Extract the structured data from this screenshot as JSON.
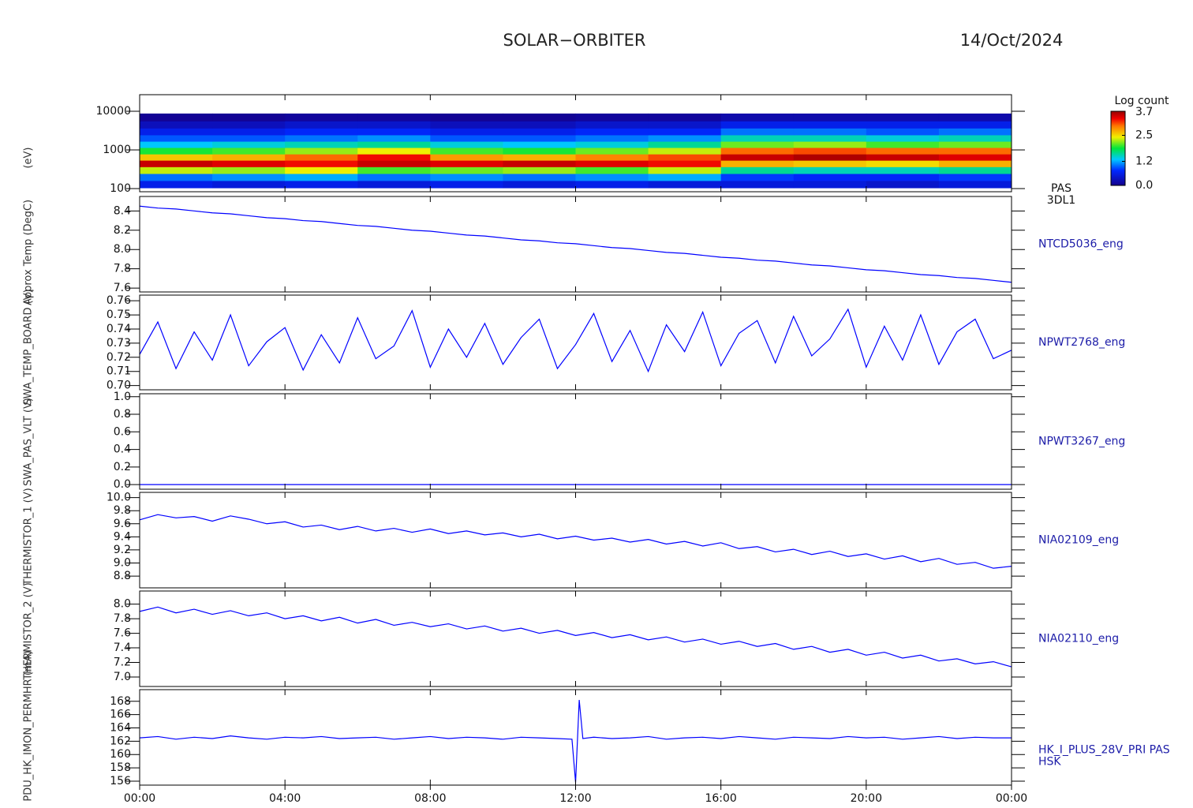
{
  "header": {
    "title": "SOLAR−ORBITER",
    "date": "14/Oct/2024"
  },
  "chart_data": [
    {
      "type": "heatmap",
      "label_lines": [
        "PAS",
        "3DL1"
      ],
      "ytitle": "(eV)",
      "log": true,
      "xlim": [
        0,
        24
      ],
      "xticks": [
        0,
        4,
        8,
        12,
        16,
        20,
        24
      ],
      "ylim": [
        83,
        26800
      ],
      "yticks": [
        100,
        1000,
        10000
      ],
      "x": [
        1,
        3,
        5,
        7,
        9,
        11,
        13,
        15,
        17,
        19,
        21,
        23
      ],
      "y": [
        130,
        200,
        300,
        450,
        650,
        950,
        1400,
        2000,
        3000,
        4500,
        7000
      ],
      "z": [
        [
          0.6,
          0.5,
          0.6,
          0.5,
          0.6,
          0.5,
          0.6,
          0.5,
          0.5,
          0.5,
          0.4,
          0.5
        ],
        [
          1.0,
          1.1,
          1.2,
          1.0,
          1.1,
          1.0,
          1.1,
          1.2,
          0.8,
          0.7,
          0.7,
          0.8
        ],
        [
          2.3,
          2.2,
          2.4,
          2.0,
          2.1,
          2.2,
          2.0,
          2.3,
          1.6,
          1.5,
          1.5,
          1.6
        ],
        [
          3.5,
          3.4,
          3.3,
          3.5,
          3.4,
          3.5,
          3.4,
          3.3,
          2.7,
          2.6,
          2.5,
          2.7
        ],
        [
          2.6,
          2.7,
          3.0,
          3.3,
          2.8,
          2.7,
          2.9,
          3.1,
          3.5,
          3.6,
          3.5,
          3.4
        ],
        [
          1.9,
          2.0,
          2.2,
          2.4,
          2.0,
          1.9,
          2.1,
          2.3,
          3.0,
          3.1,
          3.0,
          3.0
        ],
        [
          1.3,
          1.4,
          1.5,
          1.6,
          1.4,
          1.3,
          1.4,
          1.6,
          2.1,
          2.2,
          2.0,
          2.1
        ],
        [
          0.9,
          0.9,
          1.0,
          1.1,
          0.9,
          0.9,
          1.0,
          1.1,
          1.5,
          1.5,
          1.4,
          1.5
        ],
        [
          0.6,
          0.6,
          0.7,
          0.7,
          0.6,
          0.6,
          0.7,
          0.7,
          1.0,
          1.0,
          0.9,
          1.0
        ],
        [
          0.3,
          0.3,
          0.4,
          0.4,
          0.3,
          0.3,
          0.4,
          0.4,
          0.6,
          0.6,
          0.6,
          0.6
        ],
        [
          0.05,
          0.05,
          0.1,
          0.1,
          0.05,
          0.05,
          0.1,
          0.1,
          0.2,
          0.2,
          0.2,
          0.2
        ]
      ],
      "colorbar_title": "Log count",
      "zlim": [
        0,
        3.7
      ],
      "zticks": [
        {
          "value": 0,
          "label": "0.0"
        },
        1.2,
        2.5,
        3.7
      ]
    },
    {
      "type": "line",
      "label_lines": [
        "NTCD5036_eng"
      ],
      "ytitle": "Approx Temp (DegC)",
      "color": "#0000ff",
      "xlim": [
        0,
        24
      ],
      "xticks": [
        0,
        4,
        8,
        12,
        16,
        20,
        24
      ],
      "ylim": [
        7.56,
        8.55
      ],
      "yticks": [
        7.6,
        7.8,
        {
          "value": 8,
          "label": "8.0"
        },
        8.2,
        8.4
      ],
      "x": [
        0,
        0.5,
        1,
        1.5,
        2,
        2.5,
        3,
        3.5,
        4,
        4.5,
        5,
        5.5,
        6,
        6.5,
        7,
        7.5,
        8,
        8.5,
        9,
        9.5,
        10,
        10.5,
        11,
        11.5,
        12,
        12.5,
        13,
        13.5,
        14,
        14.5,
        15,
        15.5,
        16,
        16.5,
        17,
        17.5,
        18,
        18.5,
        19,
        19.5,
        20,
        20.5,
        21,
        21.5,
        22,
        22.5,
        23,
        23.5,
        24
      ],
      "values": [
        8.45,
        8.43,
        8.42,
        8.4,
        8.38,
        8.37,
        8.35,
        8.33,
        8.32,
        8.3,
        8.29,
        8.27,
        8.25,
        8.24,
        8.22,
        8.2,
        8.19,
        8.17,
        8.15,
        8.14,
        8.12,
        8.1,
        8.09,
        8.07,
        8.06,
        8.04,
        8.02,
        8.01,
        7.99,
        7.97,
        7.96,
        7.94,
        7.92,
        7.91,
        7.89,
        7.88,
        7.86,
        7.84,
        7.83,
        7.81,
        7.79,
        7.78,
        7.76,
        7.74,
        7.73,
        7.71,
        7.7,
        7.68,
        7.66
      ]
    },
    {
      "type": "line",
      "label_lines": [
        "NPWT2768_eng"
      ],
      "ytitle": "SWA_TEMP_BOARD (V)",
      "color": "#0000ff",
      "xlim": [
        0,
        24
      ],
      "xticks": [
        0,
        4,
        8,
        12,
        16,
        20,
        24
      ],
      "ylim": [
        0.697,
        0.764
      ],
      "yticks": [
        {
          "value": 0.7,
          "label": "0.70"
        },
        0.71,
        0.72,
        0.73,
        0.74,
        0.75,
        0.76
      ],
      "x": [
        0,
        0.5,
        1,
        1.5,
        2,
        2.5,
        3,
        3.5,
        4,
        4.5,
        5,
        5.5,
        6,
        6.5,
        7,
        7.5,
        8,
        8.5,
        9,
        9.5,
        10,
        10.5,
        11,
        11.5,
        12,
        12.5,
        13,
        13.5,
        14,
        14.5,
        15,
        15.5,
        16,
        16.5,
        17,
        17.5,
        18,
        18.5,
        19,
        19.5,
        20,
        20.5,
        21,
        21.5,
        22,
        22.5,
        23,
        23.5,
        24
      ],
      "values": [
        0.722,
        0.745,
        0.712,
        0.738,
        0.718,
        0.75,
        0.714,
        0.731,
        0.741,
        0.711,
        0.736,
        0.716,
        0.748,
        0.719,
        0.728,
        0.753,
        0.713,
        0.74,
        0.72,
        0.744,
        0.715,
        0.734,
        0.747,
        0.712,
        0.729,
        0.751,
        0.717,
        0.739,
        0.71,
        0.743,
        0.724,
        0.752,
        0.714,
        0.737,
        0.746,
        0.716,
        0.749,
        0.721,
        0.733,
        0.754,
        0.713,
        0.742,
        0.718,
        0.75,
        0.715,
        0.738,
        0.747,
        0.719,
        0.725
      ]
    },
    {
      "type": "line",
      "label_lines": [
        "NPWT3267_eng"
      ],
      "ytitle": "SWA_PAS_VLT (V)",
      "color": "#0000ff",
      "xlim": [
        0,
        24
      ],
      "xticks": [
        0,
        4,
        8,
        12,
        16,
        20,
        24
      ],
      "ylim": [
        -0.053,
        1.034
      ],
      "yticks": [
        {
          "value": 0,
          "label": "0.0"
        },
        0.2,
        0.4,
        0.6,
        0.8,
        {
          "value": 1,
          "label": "1.0"
        }
      ],
      "x": [
        0,
        0.5,
        1,
        1.5,
        2,
        2.5,
        3,
        3.5,
        4,
        4.5,
        5,
        5.5,
        6,
        6.5,
        7,
        7.5,
        8,
        8.5,
        9,
        9.5,
        10,
        10.5,
        11,
        11.5,
        12,
        12.5,
        13,
        13.5,
        14,
        14.5,
        15,
        15.5,
        16,
        16.5,
        17,
        17.5,
        18,
        18.5,
        19,
        19.5,
        20,
        20.5,
        21,
        21.5,
        22,
        22.5,
        23,
        23.5,
        24
      ],
      "values": [
        0,
        0,
        0,
        0,
        0,
        0,
        0,
        0,
        0,
        0,
        0,
        0,
        0,
        0,
        0,
        0,
        0,
        0,
        0,
        0,
        0,
        0,
        0,
        0,
        0,
        0,
        0,
        0,
        0,
        0,
        0,
        0,
        0,
        0,
        0,
        0,
        0,
        0,
        0,
        0,
        0,
        0,
        0,
        0,
        0,
        0,
        0,
        0,
        0
      ]
    },
    {
      "type": "line",
      "label_lines": [
        "NIA02109_eng"
      ],
      "ytitle": "THERMISTOR_1 (V)",
      "color": "#0000ff",
      "xlim": [
        0,
        24
      ],
      "xticks": [
        0,
        4,
        8,
        12,
        16,
        20,
        24
      ],
      "ylim": [
        8.62,
        10.08
      ],
      "yticks": [
        8.8,
        {
          "value": 9,
          "label": "9.0"
        },
        9.2,
        9.4,
        9.6,
        9.8,
        {
          "value": 10,
          "label": "10.0"
        }
      ],
      "x": [
        0,
        0.5,
        1,
        1.5,
        2,
        2.5,
        3,
        3.5,
        4,
        4.5,
        5,
        5.5,
        6,
        6.5,
        7,
        7.5,
        8,
        8.5,
        9,
        9.5,
        10,
        10.5,
        11,
        11.5,
        12,
        12.5,
        13,
        13.5,
        14,
        14.5,
        15,
        15.5,
        16,
        16.5,
        17,
        17.5,
        18,
        18.5,
        19,
        19.5,
        20,
        20.5,
        21,
        21.5,
        22,
        22.5,
        23,
        23.5,
        24
      ],
      "values": [
        9.66,
        9.74,
        9.69,
        9.71,
        9.64,
        9.72,
        9.67,
        9.6,
        9.63,
        9.55,
        9.58,
        9.51,
        9.56,
        9.49,
        9.53,
        9.47,
        9.52,
        9.45,
        9.49,
        9.43,
        9.46,
        9.4,
        9.44,
        9.37,
        9.41,
        9.35,
        9.38,
        9.32,
        9.36,
        9.29,
        9.33,
        9.26,
        9.31,
        9.22,
        9.25,
        9.17,
        9.21,
        9.13,
        9.18,
        9.1,
        9.14,
        9.06,
        9.11,
        9.02,
        9.07,
        8.98,
        9.01,
        8.92,
        8.95
      ]
    },
    {
      "type": "line",
      "label_lines": [
        "NIA02110_eng"
      ],
      "ytitle": "THERMISTOR_2 (V)",
      "color": "#0000ff",
      "xlim": [
        0,
        24
      ],
      "xticks": [
        0,
        4,
        8,
        12,
        16,
        20,
        24
      ],
      "ylim": [
        6.87,
        8.18
      ],
      "yticks": [
        {
          "value": 7,
          "label": "7.0"
        },
        7.2,
        7.4,
        7.6,
        7.8,
        {
          "value": 8,
          "label": "8.0"
        }
      ],
      "x": [
        0,
        0.5,
        1,
        1.5,
        2,
        2.5,
        3,
        3.5,
        4,
        4.5,
        5,
        5.5,
        6,
        6.5,
        7,
        7.5,
        8,
        8.5,
        9,
        9.5,
        10,
        10.5,
        11,
        11.5,
        12,
        12.5,
        13,
        13.5,
        14,
        14.5,
        15,
        15.5,
        16,
        16.5,
        17,
        17.5,
        18,
        18.5,
        19,
        19.5,
        20,
        20.5,
        21,
        21.5,
        22,
        22.5,
        23,
        23.5,
        24
      ],
      "values": [
        7.9,
        7.96,
        7.88,
        7.93,
        7.86,
        7.91,
        7.84,
        7.88,
        7.8,
        7.84,
        7.77,
        7.82,
        7.74,
        7.79,
        7.71,
        7.75,
        7.69,
        7.73,
        7.66,
        7.7,
        7.63,
        7.67,
        7.6,
        7.64,
        7.57,
        7.61,
        7.54,
        7.58,
        7.51,
        7.55,
        7.48,
        7.52,
        7.45,
        7.49,
        7.42,
        7.46,
        7.38,
        7.42,
        7.34,
        7.38,
        7.3,
        7.34,
        7.26,
        7.3,
        7.22,
        7.25,
        7.18,
        7.21,
        7.14
      ]
    },
    {
      "type": "line",
      "label_lines": [
        "HK_I_PLUS_28V_PRI PAS",
        "HSK"
      ],
      "ytitle": "PDU_HK_IMON_PERMHR (mA)",
      "color": "#0000ff",
      "xlim": [
        0,
        24
      ],
      "xticks": [
        {
          "value": 0,
          "label": "00:00"
        },
        {
          "value": 4,
          "label": "04:00"
        },
        {
          "value": 8,
          "label": "08:00"
        },
        {
          "value": 12,
          "label": "12:00"
        },
        {
          "value": 16,
          "label": "16:00"
        },
        {
          "value": 20,
          "label": "20:00"
        },
        {
          "value": 24,
          "label": "00:00"
        }
      ],
      "ylim": [
        155.4,
        169.75
      ],
      "yticks": [
        156,
        158,
        160,
        162,
        164,
        166,
        168
      ],
      "x": [
        0,
        0.5,
        1,
        1.5,
        2,
        2.5,
        3,
        3.5,
        4,
        4.5,
        5,
        5.5,
        6,
        6.5,
        7,
        7.5,
        8,
        8.5,
        9,
        9.5,
        10,
        10.5,
        11,
        11.5,
        11.9,
        12,
        12.1,
        12.2,
        12.5,
        13,
        13.5,
        14,
        14.5,
        15,
        15.5,
        16,
        16.5,
        17,
        17.5,
        18,
        18.5,
        19,
        19.5,
        20,
        20.5,
        21,
        21.5,
        22,
        22.5,
        23,
        23.5,
        24
      ],
      "values": [
        162.5,
        162.7,
        162.3,
        162.6,
        162.4,
        162.8,
        162.5,
        162.3,
        162.6,
        162.5,
        162.7,
        162.4,
        162.5,
        162.6,
        162.3,
        162.5,
        162.7,
        162.4,
        162.6,
        162.5,
        162.3,
        162.6,
        162.5,
        162.4,
        162.3,
        155.8,
        168.2,
        162.4,
        162.6,
        162.4,
        162.5,
        162.7,
        162.3,
        162.5,
        162.6,
        162.4,
        162.7,
        162.5,
        162.3,
        162.6,
        162.5,
        162.4,
        162.7,
        162.5,
        162.6,
        162.3,
        162.5,
        162.7,
        162.4,
        162.6,
        162.5,
        162.5
      ]
    }
  ]
}
